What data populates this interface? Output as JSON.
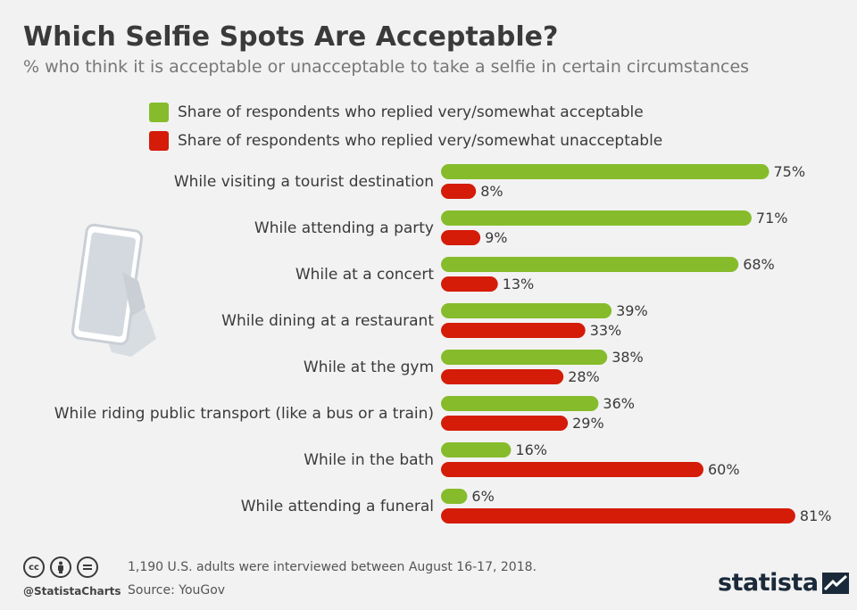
{
  "header": {
    "title": "Which Selfie Spots Are Acceptable?",
    "subtitle": "% who think it is acceptable or unacceptable to take a selfie in certain circumstances"
  },
  "legend": {
    "acceptable": "Share of respondents who replied very/somewhat acceptable",
    "unacceptable": "Share of respondents who replied very/somewhat unacceptable"
  },
  "colors": {
    "acceptable": "#86bc2b",
    "unacceptable": "#d41c08"
  },
  "chart_data": {
    "type": "bar",
    "orientation": "horizontal",
    "categories": [
      "While visiting a tourist destination",
      "While attending a party",
      "While at a concert",
      "While dining at a restaurant",
      "While at the gym",
      "While riding public transport (like a bus or a train)",
      "While in the bath",
      "While attending a funeral"
    ],
    "series": [
      {
        "name": "Share of respondents who replied very/somewhat acceptable",
        "values": [
          75,
          71,
          68,
          39,
          38,
          36,
          16,
          6
        ]
      },
      {
        "name": "Share of respondents who replied very/somewhat unacceptable",
        "values": [
          8,
          9,
          13,
          33,
          28,
          29,
          60,
          81
        ]
      }
    ],
    "value_suffix": "%",
    "xlim": [
      0,
      100
    ],
    "grid": false,
    "legend_position": "top"
  },
  "footer": {
    "cc_icons": [
      "cc-icon",
      "by-icon",
      "nd-icon"
    ],
    "handle": "@StatistaCharts",
    "note": "1,190 U.S. adults were interviewed between August 16-17, 2018.",
    "source": "Source: YouGov",
    "brand": "statista"
  }
}
